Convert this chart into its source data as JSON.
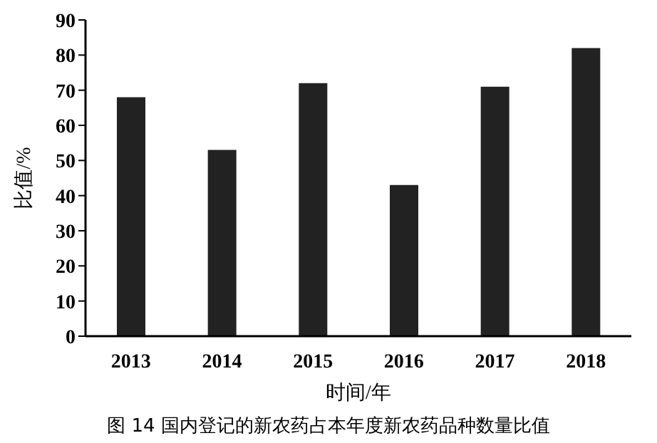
{
  "chart_data": {
    "type": "bar",
    "xlabel": "时间/年",
    "ylabel": "比值/%",
    "annotations": [
      "图 14 国内登记的新农药占本年度新农药品种数量比值"
    ],
    "categories": [
      "2013",
      "2014",
      "2015",
      "2016",
      "2017",
      "2018"
    ],
    "values": [
      68,
      53,
      72,
      43,
      71,
      82
    ],
    "color": "#222222",
    "ylim": [
      0,
      90
    ],
    "yticks": [
      0,
      10,
      20,
      30,
      40,
      50,
      60,
      70,
      80,
      90
    ],
    "grid": false,
    "legend": false
  }
}
